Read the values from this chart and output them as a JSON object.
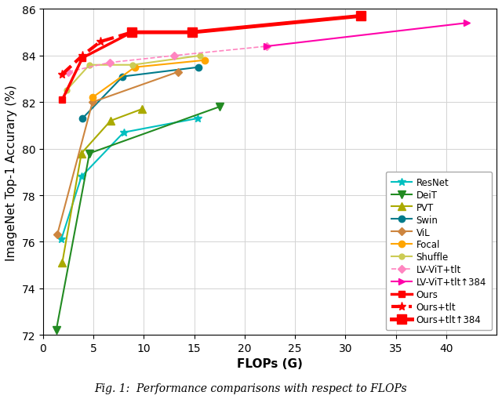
{
  "xlabel": "FLOPs (G)",
  "ylabel": "ImageNet Top-1 Accurary (%)",
  "xlim": [
    0,
    45
  ],
  "ylim": [
    72,
    86
  ],
  "xticks": [
    0,
    5,
    10,
    15,
    20,
    25,
    30,
    35,
    40
  ],
  "yticks": [
    72,
    74,
    76,
    78,
    80,
    82,
    84,
    86
  ],
  "caption": "Fig. 1:  Performance comparisons with respect to FLOPs",
  "series": [
    {
      "label": "ResNet",
      "color": "#00C0C0",
      "marker": "*",
      "linestyle": "-",
      "linewidth": 1.5,
      "markersize": 7,
      "x": [
        1.8,
        3.8,
        8.0,
        15.3
      ],
      "y": [
        76.1,
        78.8,
        80.7,
        81.3
      ]
    },
    {
      "label": "DeiT",
      "color": "#228B22",
      "marker": "v",
      "linestyle": "-",
      "linewidth": 1.5,
      "markersize": 7,
      "x": [
        1.3,
        4.6,
        17.5
      ],
      "y": [
        72.2,
        79.8,
        81.8
      ]
    },
    {
      "label": "PVT",
      "color": "#AAAA00",
      "marker": "^",
      "linestyle": "-",
      "linewidth": 1.5,
      "markersize": 7,
      "x": [
        1.9,
        3.8,
        6.7,
        9.8
      ],
      "y": [
        75.1,
        79.8,
        81.2,
        81.7
      ]
    },
    {
      "label": "Swin",
      "color": "#007B8B",
      "marker": "o",
      "linestyle": "-",
      "linewidth": 1.5,
      "markersize": 6,
      "x": [
        3.9,
        7.9,
        15.4
      ],
      "y": [
        81.3,
        83.1,
        83.5
      ]
    },
    {
      "label": "ViL",
      "color": "#CD853F",
      "marker": "D",
      "linestyle": "-",
      "linewidth": 1.5,
      "markersize": 5,
      "x": [
        1.4,
        4.9,
        13.4
      ],
      "y": [
        76.3,
        82.0,
        83.3
      ]
    },
    {
      "label": "Focal",
      "color": "#FFA500",
      "marker": "o",
      "linestyle": "-",
      "linewidth": 1.5,
      "markersize": 6,
      "x": [
        4.9,
        9.1,
        16.0
      ],
      "y": [
        82.2,
        83.5,
        83.8
      ]
    },
    {
      "label": "Shuffle",
      "color": "#CCCC55",
      "marker": "o",
      "linestyle": "-",
      "linewidth": 1.5,
      "markersize": 5,
      "x": [
        2.3,
        4.6,
        8.9,
        15.6
      ],
      "y": [
        82.5,
        83.6,
        83.6,
        84.0
      ]
    },
    {
      "label": "LV-ViT+tlt",
      "color": "#FF85C0",
      "marker": "D",
      "linestyle": "--",
      "linewidth": 1.2,
      "markersize": 5,
      "x": [
        2.5,
        6.6,
        13.0,
        22.2
      ],
      "y": [
        83.3,
        83.7,
        84.0,
        84.4
      ]
    },
    {
      "label": "LV-ViT+tlt↑384",
      "color": "#FF00AA",
      "marker": ">",
      "linestyle": "-",
      "linewidth": 1.5,
      "markersize": 6,
      "x": [
        22.2,
        42.0
      ],
      "y": [
        84.4,
        85.4
      ]
    },
    {
      "label": "Ours",
      "color": "#FF0000",
      "marker": "s",
      "linestyle": "-",
      "linewidth": 2.5,
      "markersize": 6,
      "x": [
        1.9,
        3.9,
        8.8,
        14.8,
        31.5
      ],
      "y": [
        82.1,
        83.9,
        85.0,
        85.0,
        85.7
      ]
    },
    {
      "label": "Ours+tlt",
      "color": "#FF0000",
      "marker": "*",
      "linestyle": "--",
      "linewidth": 3.0,
      "markersize": 8,
      "x": [
        1.9,
        3.9,
        5.7,
        8.8
      ],
      "y": [
        83.2,
        84.0,
        84.6,
        85.0
      ]
    },
    {
      "label": "Ours+tlt↑384",
      "color": "#FF0000",
      "marker": "s",
      "linestyle": "-",
      "linewidth": 3.5,
      "markersize": 8,
      "x": [
        8.8,
        14.8,
        31.5
      ],
      "y": [
        85.0,
        85.0,
        85.7
      ]
    }
  ]
}
